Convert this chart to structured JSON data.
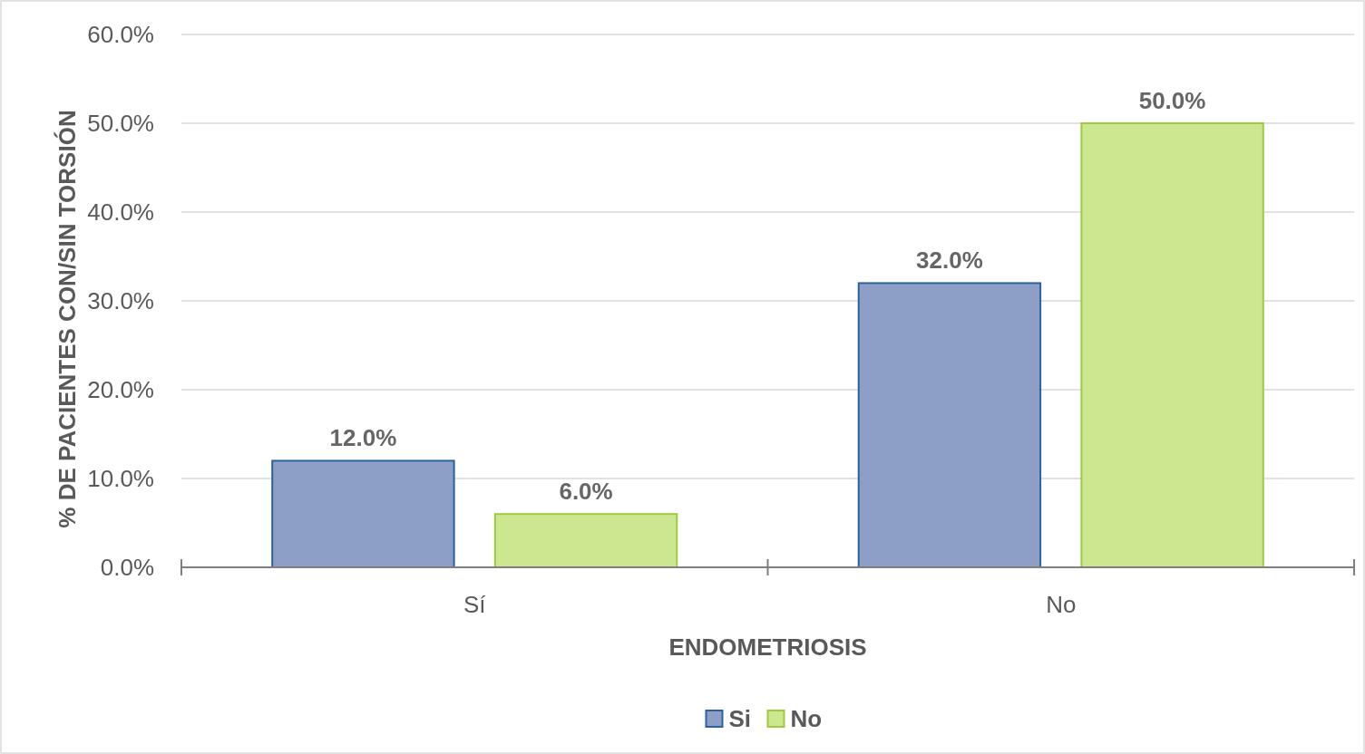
{
  "chart_data": {
    "type": "bar",
    "xlabel": "ENDOMETRIOSIS",
    "ylabel": "% DE PACIENTES CON/SIN TORSIÓN",
    "categories": [
      "Sí",
      "No"
    ],
    "series": [
      {
        "name": "Si",
        "color": "#8d9fc6",
        "values": [
          12,
          32
        ],
        "value_labels": [
          "12.0%",
          "32.0%"
        ]
      },
      {
        "name": "No",
        "color": "#cde690",
        "values": [
          6,
          50
        ],
        "value_labels": [
          "6.0%",
          "50.0%"
        ]
      }
    ],
    "ylim": [
      0,
      60
    ],
    "yticks": [
      {
        "value": 0,
        "label": "0.0%"
      },
      {
        "value": 10,
        "label": "10.0%"
      },
      {
        "value": 20,
        "label": "20.0%"
      },
      {
        "value": 30,
        "label": "30.0%"
      },
      {
        "value": 40,
        "label": "40.0%"
      },
      {
        "value": 50,
        "label": "50.0%"
      },
      {
        "value": 60,
        "label": "60.0%"
      }
    ],
    "grid": "y",
    "legend": "bottom"
  }
}
